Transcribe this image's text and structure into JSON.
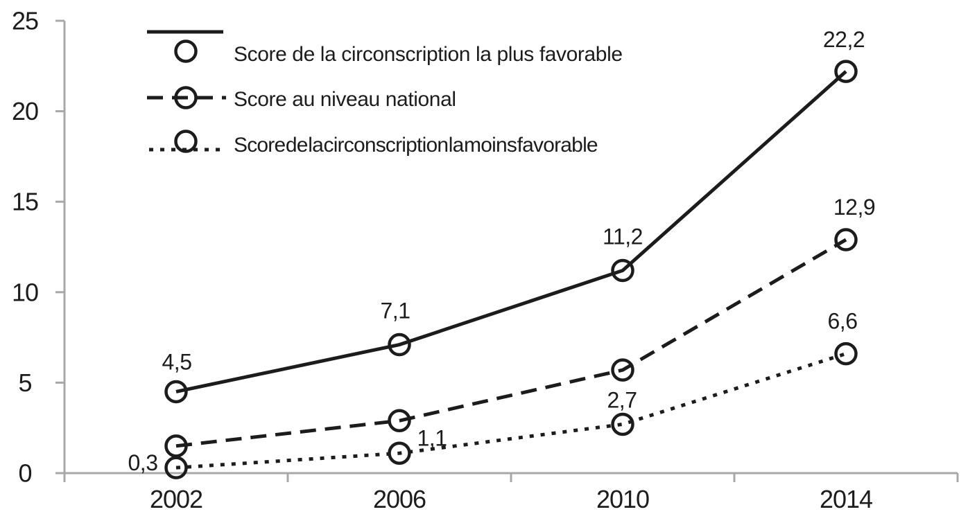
{
  "chart_data": {
    "type": "line",
    "title": "",
    "categories": [
      "2002",
      "2006",
      "2010",
      "2014"
    ],
    "series": [
      {
        "name": "Score de la circonscription la plus favorable",
        "line_style": "solid",
        "marker": "open-circle",
        "values": [
          4.5,
          7.1,
          11.2,
          22.2
        ],
        "point_labels": [
          "4,5",
          "7,1",
          "11,2",
          "22,2"
        ]
      },
      {
        "name": "Score au niveau national",
        "line_style": "dashed",
        "marker": "open-circle",
        "values": [
          1.5,
          2.9,
          5.7,
          12.9
        ],
        "point_labels": [
          "",
          "",
          "",
          "12,9"
        ]
      },
      {
        "name": "Score de la circonscription la moins favorable",
        "line_style": "dotted",
        "marker": "open-circle",
        "values": [
          0.3,
          1.1,
          2.7,
          6.6
        ],
        "point_labels": [
          "0,3",
          "1,1",
          "2,7",
          "6,6"
        ]
      }
    ],
    "x_axis": {
      "labels": [
        "2002",
        "2006",
        "2010",
        "2014"
      ]
    },
    "y_axis": {
      "ticks": [
        "0",
        "5",
        "10",
        "15",
        "20",
        "25"
      ],
      "range": [
        0,
        25
      ]
    },
    "legend": {
      "position": "top-left",
      "entries": [
        "Score de la circonscription la plus favorable",
        "Score au niveau national",
        "Score de la circonscription la moins favorable"
      ]
    },
    "grid": false,
    "colors": {
      "series_line": "#1c1c1c",
      "marker_stroke": "#1c1c1c",
      "axis": "#a8a8a8",
      "text": "#1c1c1c",
      "background": "#ffffff"
    }
  }
}
